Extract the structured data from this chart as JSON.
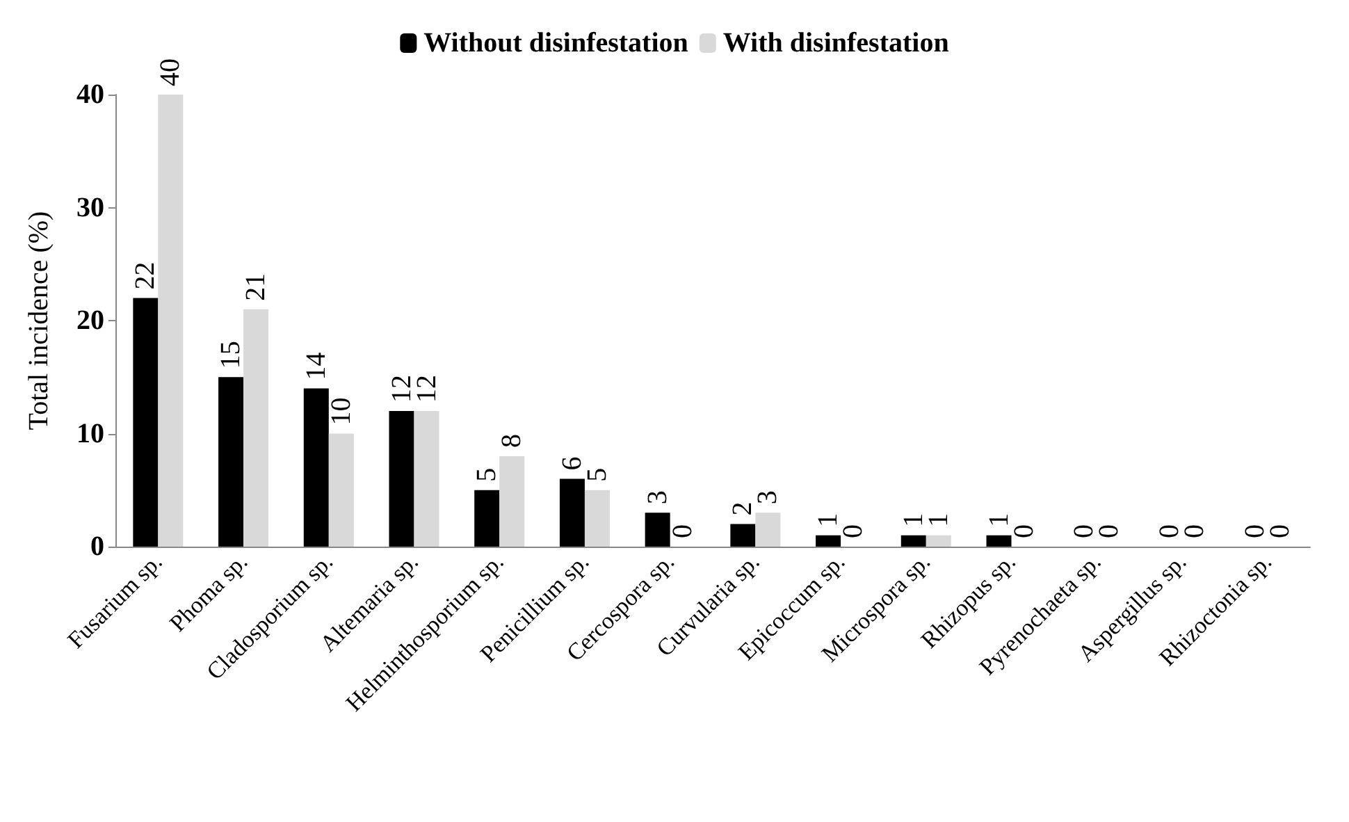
{
  "chart_data": {
    "type": "bar",
    "ylabel": "Total incidence (%)",
    "categories": [
      "Fusarium sp.",
      "Phoma sp.",
      "Cladosporium sp.",
      "Altemaria sp.",
      "Helminthosporium sp.",
      "Penicillium sp.",
      "Cercospora sp.",
      "Curvularia sp.",
      "Epicoccum sp.",
      "Microspora sp.",
      "Rhizopus sp.",
      "Pyrenochaeta sp.",
      "Aspergillus sp.",
      "Rhizoctonia sp."
    ],
    "series": [
      {
        "name": "Without disinfestation",
        "color": "#000000",
        "values": [
          22,
          15,
          14,
          12,
          5,
          6,
          3,
          2,
          1,
          1,
          1,
          0,
          0,
          0
        ]
      },
      {
        "name": "With disinfestation",
        "color": "#d9d9d9",
        "values": [
          40,
          21,
          10,
          12,
          8,
          5,
          0,
          3,
          0,
          1,
          0,
          0,
          0,
          0
        ]
      }
    ],
    "ylim": [
      0,
      40
    ],
    "yticks": [
      0,
      10,
      20,
      30,
      40
    ],
    "grid": false,
    "legend": "top",
    "data_labels": true
  }
}
